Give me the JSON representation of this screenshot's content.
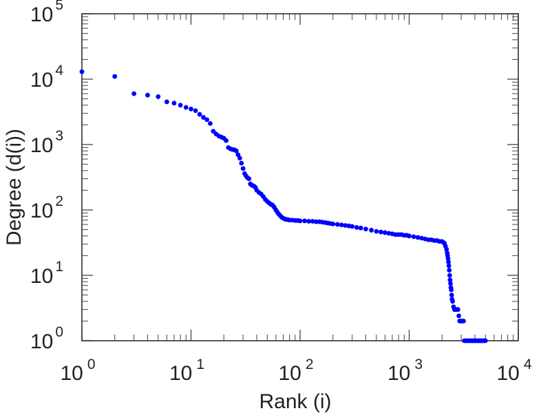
{
  "chart_data": {
    "type": "scatter",
    "title": "",
    "xlabel": "Rank (i)",
    "ylabel": "Degree (d(i))",
    "xscale": "log",
    "yscale": "log",
    "xlim": [
      1,
      10000
    ],
    "ylim": [
      1,
      100000
    ],
    "grid": false,
    "marker_color": "#0000ff",
    "x_ticks": [
      {
        "base": "10",
        "exp": "0"
      },
      {
        "base": "10",
        "exp": "1"
      },
      {
        "base": "10",
        "exp": "2"
      },
      {
        "base": "10",
        "exp": "3"
      },
      {
        "base": "10",
        "exp": "4"
      }
    ],
    "y_ticks": [
      {
        "base": "10",
        "exp": "0"
      },
      {
        "base": "10",
        "exp": "1"
      },
      {
        "base": "10",
        "exp": "2"
      },
      {
        "base": "10",
        "exp": "3"
      },
      {
        "base": "10",
        "exp": "4"
      },
      {
        "base": "10",
        "exp": "5"
      }
    ],
    "points": [
      [
        1,
        13000
      ],
      [
        2,
        11000
      ],
      [
        3,
        6000
      ],
      [
        4,
        5700
      ],
      [
        5,
        5400
      ],
      [
        6,
        4500
      ],
      [
        7,
        4300
      ],
      [
        8,
        4000
      ],
      [
        9,
        3700
      ],
      [
        10,
        3500
      ],
      [
        11,
        3300
      ],
      [
        12,
        2900
      ],
      [
        13,
        2600
      ],
      [
        14,
        2400
      ],
      [
        15,
        2100
      ],
      [
        16,
        1600
      ],
      [
        17,
        1450
      ],
      [
        18,
        1350
      ],
      [
        19,
        1300
      ],
      [
        20,
        1250
      ],
      [
        21,
        1150
      ],
      [
        22,
        900
      ],
      [
        23,
        860
      ],
      [
        24,
        840
      ],
      [
        25,
        830
      ],
      [
        26,
        800
      ],
      [
        27,
        700
      ],
      [
        28,
        620
      ],
      [
        29,
        520
      ],
      [
        30,
        430
      ],
      [
        31,
        360
      ],
      [
        32,
        330
      ],
      [
        33,
        310
      ],
      [
        34,
        300
      ],
      [
        35,
        250
      ],
      [
        36,
        240
      ],
      [
        37,
        235
      ],
      [
        38,
        230
      ],
      [
        39,
        220
      ],
      [
        40,
        200
      ],
      [
        42,
        185
      ],
      [
        44,
        175
      ],
      [
        46,
        160
      ],
      [
        48,
        145
      ],
      [
        50,
        135
      ],
      [
        52,
        128
      ],
      [
        54,
        122
      ],
      [
        56,
        118
      ],
      [
        58,
        110
      ],
      [
        60,
        100
      ],
      [
        62,
        92
      ],
      [
        64,
        86
      ],
      [
        66,
        81
      ],
      [
        68,
        77
      ],
      [
        70,
        75
      ],
      [
        72,
        73
      ],
      [
        74,
        72
      ],
      [
        76,
        71
      ],
      [
        78,
        71
      ],
      [
        80,
        70
      ],
      [
        85,
        70
      ],
      [
        90,
        69
      ],
      [
        95,
        69
      ],
      [
        100,
        68
      ],
      [
        110,
        68
      ],
      [
        120,
        67
      ],
      [
        130,
        67
      ],
      [
        140,
        66
      ],
      [
        150,
        66
      ],
      [
        160,
        65
      ],
      [
        170,
        64
      ],
      [
        180,
        63
      ],
      [
        190,
        62
      ],
      [
        200,
        61
      ],
      [
        220,
        60
      ],
      [
        240,
        59
      ],
      [
        260,
        58
      ],
      [
        280,
        57
      ],
      [
        300,
        56
      ],
      [
        330,
        54
      ],
      [
        360,
        53
      ],
      [
        400,
        51
      ],
      [
        450,
        49
      ],
      [
        500,
        47
      ],
      [
        550,
        46
      ],
      [
        600,
        45
      ],
      [
        650,
        44
      ],
      [
        700,
        43
      ],
      [
        750,
        42
      ],
      [
        800,
        42
      ],
      [
        850,
        42
      ],
      [
        900,
        41
      ],
      [
        950,
        41
      ],
      [
        1000,
        40
      ],
      [
        1100,
        39
      ],
      [
        1200,
        38
      ],
      [
        1300,
        37
      ],
      [
        1400,
        36
      ],
      [
        1500,
        35
      ],
      [
        1600,
        35
      ],
      [
        1700,
        34
      ],
      [
        1800,
        34
      ],
      [
        1900,
        33
      ],
      [
        2000,
        33
      ],
      [
        2050,
        32
      ],
      [
        2100,
        31
      ],
      [
        2150,
        28
      ],
      [
        2200,
        25
      ],
      [
        2230,
        22
      ],
      [
        2250,
        20
      ],
      [
        2270,
        18
      ],
      [
        2290,
        16
      ],
      [
        2310,
        14
      ],
      [
        2330,
        12
      ],
      [
        2350,
        10
      ],
      [
        2370,
        8.5
      ],
      [
        2390,
        7.5
      ],
      [
        2410,
        6.5
      ],
      [
        2430,
        6
      ],
      [
        2450,
        5
      ],
      [
        2470,
        4.3
      ],
      [
        2500,
        4
      ],
      [
        2550,
        3.3
      ],
      [
        2600,
        3
      ],
      [
        2650,
        3
      ],
      [
        2700,
        3
      ],
      [
        2750,
        3
      ],
      [
        2800,
        3
      ],
      [
        2850,
        2.4
      ],
      [
        2900,
        2
      ],
      [
        2950,
        2
      ],
      [
        3000,
        2
      ],
      [
        3050,
        2
      ],
      [
        3100,
        2
      ],
      [
        3150,
        2
      ],
      [
        3200,
        1
      ],
      [
        3300,
        1
      ],
      [
        3400,
        1
      ],
      [
        3500,
        1
      ],
      [
        3600,
        1
      ],
      [
        3700,
        1
      ],
      [
        3800,
        1
      ],
      [
        3900,
        1
      ],
      [
        4000,
        1
      ],
      [
        4100,
        1
      ],
      [
        4200,
        1
      ],
      [
        4300,
        1
      ],
      [
        4400,
        1
      ],
      [
        4500,
        1
      ],
      [
        4600,
        1
      ],
      [
        4700,
        1
      ],
      [
        4800,
        1
      ],
      [
        4900,
        1
      ],
      [
        5000,
        1
      ]
    ]
  }
}
